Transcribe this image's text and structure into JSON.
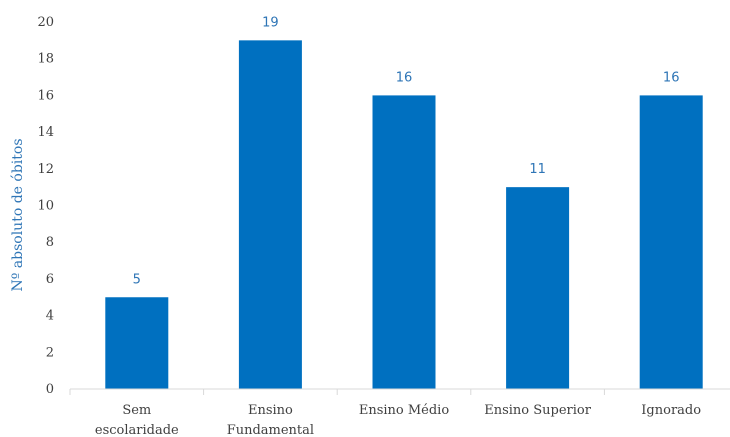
{
  "chart_data": {
    "type": "bar",
    "categories": [
      [
        "Sem",
        "escolaridade"
      ],
      [
        "Ensino",
        "Fundamental"
      ],
      [
        "Ensino Médio"
      ],
      [
        "Ensino Superior"
      ],
      [
        "Ignorado"
      ]
    ],
    "values": [
      5,
      19,
      16,
      11,
      16
    ],
    "data_labels": [
      "5",
      "19",
      "16",
      "11",
      "16"
    ],
    "xlabel": "",
    "ylabel": "Nº absoluto de óbitos",
    "ylim": [
      0,
      20
    ],
    "yticks": [
      0,
      2,
      4,
      6,
      8,
      10,
      12,
      14,
      16,
      18,
      20
    ],
    "grid": false,
    "legend": "none",
    "colors": {
      "bar": "#0070C0",
      "data_label": "#2E75B6",
      "axis_title": "#2E75B6",
      "axis_line": "#D9D9D9",
      "tick_text": "#404040"
    }
  }
}
